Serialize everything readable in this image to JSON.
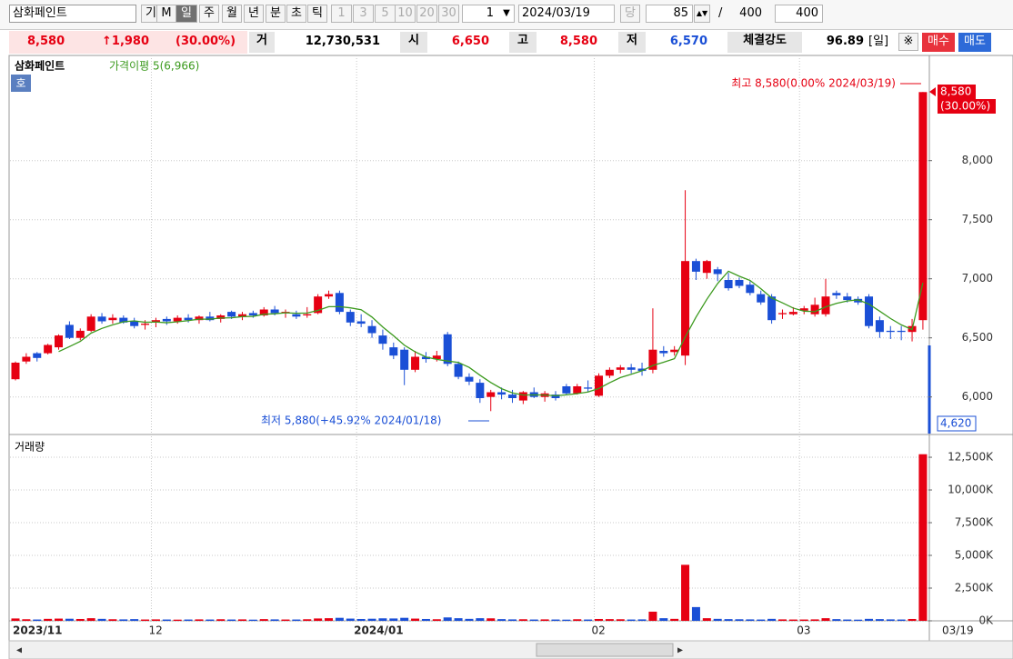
{
  "toolbar": {
    "stock_name": "삼화페인트",
    "buttons": [
      "기",
      "M",
      "일",
      "주",
      "월",
      "년",
      "분",
      "초",
      "틱"
    ],
    "periods": [
      "1",
      "3",
      "5",
      "10",
      "20",
      "30"
    ],
    "interval": "1",
    "date": "2024/03/19",
    "today": "당",
    "count": "85",
    "separator": "/",
    "max": "400",
    "visible": "400"
  },
  "quote": {
    "price": "8,580",
    "change": "↑1,980",
    "change_pct": "(30.00%)",
    "volume_label": "거",
    "volume": "12,730,531",
    "open_label": "시",
    "open": "6,650",
    "high_label": "고",
    "high": "8,580",
    "low_label": "저",
    "low": "6,570",
    "strength_label": "체결강도",
    "strength": "96.89",
    "period": "[일]",
    "buy": "매수",
    "sell": "매도"
  },
  "chart_data": [
    {
      "type": "candlestick",
      "title": "삼화페인트",
      "badge": "호",
      "open": [
        6150,
        6300,
        6370,
        6370,
        6420,
        6610,
        6500,
        6560,
        6680,
        6650,
        6670,
        6640,
        6610,
        6630,
        6660,
        6640,
        6670,
        6650,
        6680,
        6660,
        6720,
        6680,
        6710,
        6690,
        6740,
        6710,
        6700,
        6690,
        6710,
        6850,
        6880,
        6720,
        6640,
        6600,
        6520,
        6420,
        6400,
        6230,
        6340,
        6320,
        6530,
        6280,
        6170,
        6120,
        6000,
        6040,
        6020,
        5970,
        6040,
        6000,
        6020,
        6090,
        6030,
        6080,
        6010,
        6180,
        6230,
        6250,
        6240,
        6230,
        6390,
        6380,
        6350,
        7150,
        7050,
        7080,
        6990,
        6990,
        6950,
        6870,
        6850,
        6700,
        6700,
        6730,
        6700,
        6700,
        6880,
        6850,
        6830,
        6850,
        6650,
        6560,
        6560,
        6550,
        6650
      ],
      "high": [
        6300,
        6370,
        6380,
        6450,
        6530,
        6640,
        6580,
        6700,
        6710,
        6700,
        6690,
        6670,
        6650,
        6670,
        6680,
        6690,
        6700,
        6690,
        6720,
        6700,
        6730,
        6720,
        6730,
        6760,
        6770,
        6740,
        6730,
        6760,
        6870,
        6900,
        6900,
        6740,
        6700,
        6650,
        6570,
        6460,
        6420,
        6390,
        6380,
        6390,
        6550,
        6300,
        6200,
        6150,
        6060,
        6080,
        6060,
        6050,
        6080,
        6050,
        6050,
        6110,
        6110,
        6140,
        6200,
        6250,
        6270,
        6280,
        6290,
        6750,
        6430,
        6430,
        7750,
        7170,
        7160,
        7100,
        7050,
        7010,
        6980,
        6900,
        6870,
        6740,
        6760,
        6770,
        6840,
        7000,
        6900,
        6880,
        6850,
        6870,
        6680,
        6600,
        6600,
        6660,
        8580
      ],
      "low": [
        6140,
        6280,
        6300,
        6360,
        6400,
        6490,
        6480,
        6550,
        6620,
        6620,
        6620,
        6580,
        6570,
        6590,
        6610,
        6620,
        6630,
        6620,
        6640,
        6630,
        6660,
        6650,
        6670,
        6680,
        6690,
        6670,
        6660,
        6670,
        6700,
        6830,
        6700,
        6600,
        6590,
        6500,
        6400,
        6320,
        6100,
        6210,
        6290,
        6300,
        6260,
        6150,
        6100,
        5950,
        5880,
        5980,
        5950,
        5940,
        5990,
        5960,
        5970,
        6020,
        6020,
        6040,
        6000,
        6160,
        6200,
        6200,
        6180,
        6200,
        6340,
        6350,
        6270,
        6990,
        7000,
        6980,
        6900,
        6920,
        6860,
        6780,
        6620,
        6660,
        6690,
        6700,
        6680,
        6680,
        6830,
        6800,
        6780,
        6580,
        6500,
        6490,
        6480,
        6470,
        6570
      ],
      "close": [
        6290,
        6340,
        6330,
        6440,
        6520,
        6500,
        6560,
        6680,
        6640,
        6670,
        6630,
        6600,
        6620,
        6650,
        6640,
        6670,
        6650,
        6680,
        6650,
        6690,
        6680,
        6700,
        6690,
        6740,
        6710,
        6720,
        6680,
        6700,
        6850,
        6870,
        6720,
        6630,
        6620,
        6540,
        6450,
        6350,
        6230,
        6340,
        6320,
        6350,
        6280,
        6170,
        6130,
        5990,
        6040,
        6020,
        5990,
        6040,
        6000,
        6030,
        5990,
        6030,
        6090,
        6070,
        6180,
        6230,
        6250,
        6230,
        6220,
        6400,
        6370,
        6400,
        7150,
        7060,
        7150,
        7040,
        6920,
        6940,
        6880,
        6800,
        6650,
        6710,
        6720,
        6750,
        6780,
        6850,
        6860,
        6820,
        6800,
        6600,
        6550,
        6550,
        6550,
        6600,
        8580
      ],
      "up_color": "#e60012",
      "down_color": "#1a4fd6",
      "series": [
        {
          "name": "가격이평 5(6,966)",
          "color": "#3c9a1e",
          "values": [
            null,
            null,
            null,
            null,
            6384,
            6426,
            6470,
            6540,
            6580,
            6610,
            6636,
            6644,
            6632,
            6634,
            6628,
            6636,
            6646,
            6658,
            6658,
            6668,
            6670,
            6680,
            6682,
            6700,
            6704,
            6712,
            6708,
            6710,
            6732,
            6764,
            6764,
            6754,
            6738,
            6676,
            6592,
            6518,
            6438,
            6382,
            6338,
            6318,
            6304,
            6292,
            6250,
            6184,
            6122,
            6070,
            6034,
            6016,
            6018,
            6016,
            6010,
            6018,
            6028,
            6042,
            6072,
            6120,
            6164,
            6192,
            6222,
            6266,
            6294,
            6324,
            6508,
            6676,
            6826,
            6960,
            7064,
            7022,
            6986,
            6916,
            6838,
            6796,
            6752,
            6726,
            6722,
            6762,
            6792,
            6812,
            6822,
            6786,
            6726,
            6664,
            6610,
            6570,
            6966
          ]
        }
      ],
      "ylim": [
        5690,
        8890
      ],
      "yticks": [
        {
          "value": 6000,
          "label": "6,000"
        },
        {
          "value": 6500,
          "label": "6,500"
        },
        {
          "value": 7000,
          "label": "7,000"
        },
        {
          "value": 7500,
          "label": "7,500"
        },
        {
          "value": 8000,
          "label": "8,000"
        }
      ],
      "grid": true,
      "annotations": {
        "high": "최고 8,580(0.00% 2024/03/19)",
        "low": "최저 5,880(+45.92% 2024/01/18)",
        "last_price": "8,580",
        "last_change": "(30.00%)",
        "lower_limit": "4,620"
      }
    },
    {
      "type": "bar",
      "title": "거래량",
      "categories": [
        "2023/11",
        null,
        null,
        null,
        null,
        null,
        null,
        null,
        null,
        null,
        null,
        null,
        null,
        "12",
        null,
        null,
        null,
        null,
        null,
        null,
        null,
        null,
        null,
        null,
        null,
        null,
        null,
        null,
        null,
        null,
        null,
        null,
        "2024/01",
        null,
        null,
        null,
        null,
        null,
        null,
        null,
        null,
        null,
        null,
        null,
        null,
        null,
        null,
        null,
        null,
        null,
        null,
        null,
        null,
        null,
        "02",
        null,
        null,
        null,
        null,
        null,
        null,
        null,
        null,
        null,
        null,
        null,
        null,
        null,
        null,
        null,
        null,
        null,
        null,
        "03",
        null,
        null,
        null,
        null,
        null,
        null,
        null,
        null,
        null,
        null,
        "03/19"
      ],
      "values": [
        180,
        120,
        100,
        150,
        170,
        160,
        140,
        200,
        150,
        120,
        110,
        130,
        100,
        110,
        100,
        90,
        100,
        110,
        100,
        120,
        100,
        110,
        90,
        130,
        110,
        100,
        100,
        120,
        180,
        200,
        230,
        170,
        140,
        160,
        190,
        180,
        230,
        170,
        140,
        120,
        260,
        200,
        150,
        200,
        190,
        130,
        110,
        120,
        100,
        110,
        100,
        90,
        120,
        100,
        140,
        130,
        120,
        100,
        110,
        700,
        200,
        150,
        4280,
        1050,
        200,
        150,
        130,
        120,
        110,
        100,
        150,
        110,
        100,
        100,
        110,
        200,
        130,
        100,
        90,
        150,
        130,
        110,
        100,
        140,
        12730.531
      ],
      "ylim": [
        0,
        14100
      ],
      "yticks": [
        {
          "value": 0,
          "label": "0K"
        },
        {
          "value": 2500,
          "label": "2,500K"
        },
        {
          "value": 5000,
          "label": "5,000K"
        },
        {
          "value": 7500,
          "label": "7,500K"
        },
        {
          "value": 10000,
          "label": "10,000K"
        },
        {
          "value": 12500,
          "label": "12,500K"
        }
      ],
      "grid": true
    }
  ]
}
